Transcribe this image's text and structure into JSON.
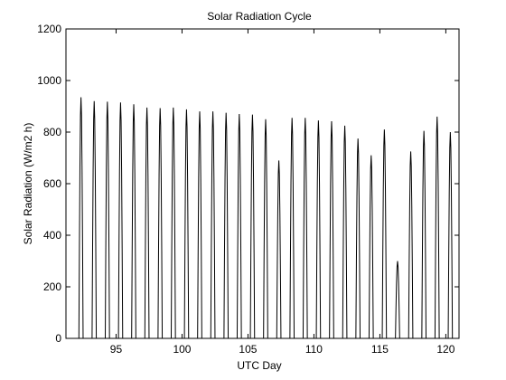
{
  "chart_data": {
    "type": "line",
    "title": "Solar Radiation Cycle",
    "xlabel": "UTC Day",
    "ylabel": "Solar Radiation (W/m2 h)",
    "xlim": [
      91.2,
      121.0
    ],
    "ylim": [
      0,
      1200
    ],
    "xticks": [
      95,
      100,
      105,
      110,
      115,
      120
    ],
    "yticks": [
      0,
      200,
      400,
      600,
      800,
      1000,
      1200
    ],
    "grid": false,
    "series": [
      {
        "color": "#000000",
        "day_peaks": [
          {
            "day": 91,
            "peak": 0
          },
          {
            "day": 92,
            "peak": 935
          },
          {
            "day": 93,
            "peak": 920
          },
          {
            "day": 94,
            "peak": 918
          },
          {
            "day": 95,
            "peak": 915
          },
          {
            "day": 96,
            "peak": 908
          },
          {
            "day": 97,
            "peak": 895
          },
          {
            "day": 98,
            "peak": 893
          },
          {
            "day": 99,
            "peak": 895
          },
          {
            "day": 100,
            "peak": 888
          },
          {
            "day": 101,
            "peak": 880
          },
          {
            "day": 102,
            "peak": 880
          },
          {
            "day": 103,
            "peak": 875
          },
          {
            "day": 104,
            "peak": 870
          },
          {
            "day": 105,
            "peak": 868
          },
          {
            "day": 106,
            "peak": 850
          },
          {
            "day": 107,
            "peak": 690
          },
          {
            "day": 108,
            "peak": 855
          },
          {
            "day": 109,
            "peak": 855
          },
          {
            "day": 110,
            "peak": 845
          },
          {
            "day": 111,
            "peak": 842
          },
          {
            "day": 112,
            "peak": 825
          },
          {
            "day": 113,
            "peak": 775
          },
          {
            "day": 114,
            "peak": 710
          },
          {
            "day": 115,
            "peak": 810
          },
          {
            "day": 116,
            "peak": 300
          },
          {
            "day": 117,
            "peak": 725
          },
          {
            "day": 118,
            "peak": 805
          },
          {
            "day": 119,
            "peak": 860
          },
          {
            "day": 120,
            "peak": 800
          },
          {
            "day": 121,
            "peak": 795
          }
        ]
      }
    ]
  }
}
